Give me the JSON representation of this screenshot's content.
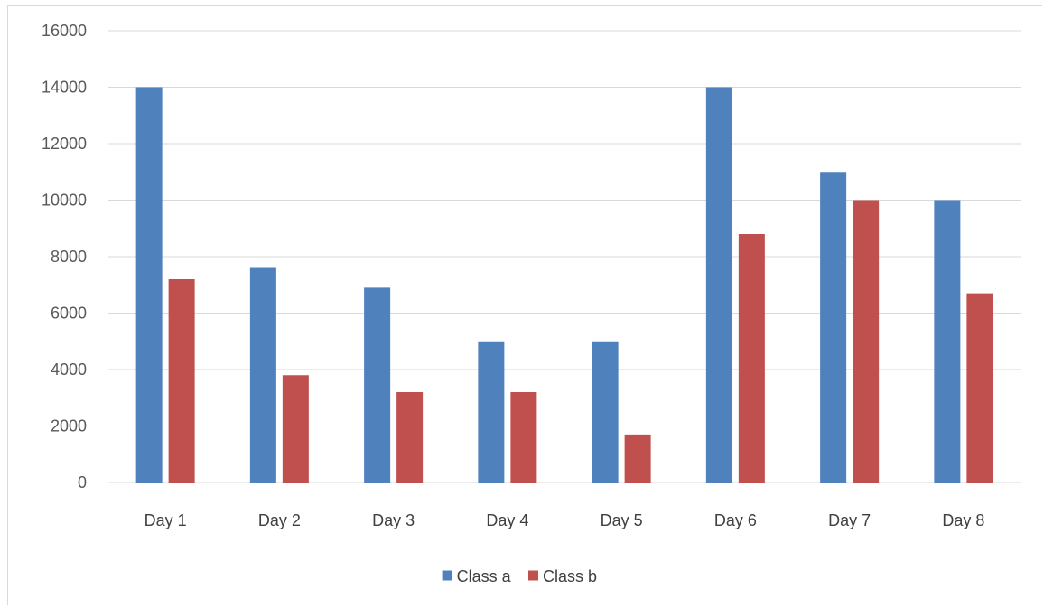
{
  "chart_data": {
    "type": "bar",
    "categories": [
      "Day 1",
      "Day 2",
      "Day 3",
      "Day 4",
      "Day 5",
      "Day 6",
      "Day 7",
      "Day 8"
    ],
    "series": [
      {
        "name": "Class a",
        "color": "#4f81bd",
        "values": [
          14000,
          7600,
          6900,
          5000,
          5000,
          14000,
          11000,
          10000
        ]
      },
      {
        "name": "Class b",
        "color": "#c0504d",
        "values": [
          7200,
          3800,
          3200,
          3200,
          1700,
          8800,
          10000,
          6700
        ]
      }
    ],
    "ylim": [
      0,
      16000
    ],
    "yticks": [
      "0",
      "2000",
      "4000",
      "6000",
      "8000",
      "10000",
      "12000",
      "14000",
      "16000"
    ],
    "grid": true,
    "legend_position": "bottom",
    "title": "",
    "xlabel": "",
    "ylabel": ""
  }
}
